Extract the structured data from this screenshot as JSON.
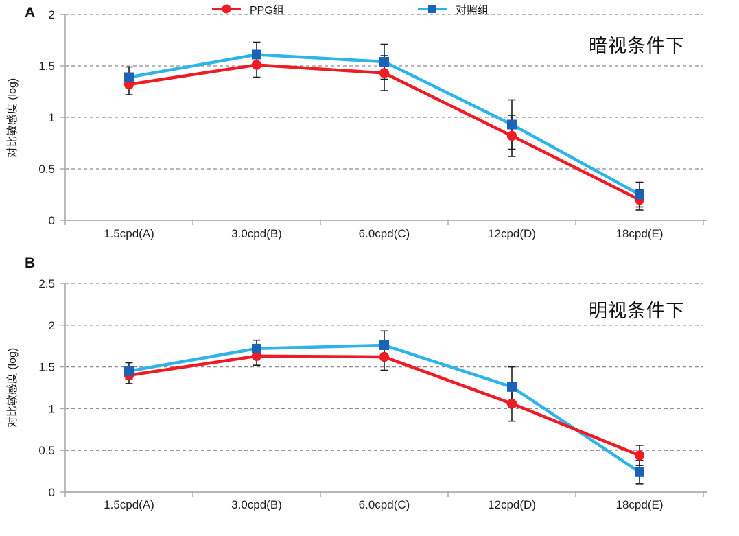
{
  "chart_data": {
    "type": "line",
    "figure_kind": "two-panel line chart with error bars",
    "panels": [
      {
        "panel_label": "A",
        "title": "暗视条件下",
        "ylabel": "对比敏感度 (log)",
        "ylim": [
          0,
          2
        ],
        "yticks": [
          0,
          0.5,
          1,
          1.5,
          2
        ],
        "grid": "dashed horizontal",
        "categories": [
          "1.5cpd(A)",
          "3.0cpd(B)",
          "6.0cpd(C)",
          "12cpd(D)",
          "18cpd(E)"
        ],
        "series": [
          {
            "name": "PPG组",
            "marker": "circle",
            "line_color": "#EE1C25",
            "marker_color": "#EE1C25",
            "values": [
              1.32,
              1.51,
              1.43,
              0.82,
              0.2
            ],
            "errors": [
              0.1,
              0.12,
              0.17,
              0.2,
              0.1
            ]
          },
          {
            "name": "对照组",
            "marker": "square",
            "line_color": "#2FB4E8",
            "marker_color": "#1B63B8",
            "values": [
              1.39,
              1.61,
              1.54,
              0.93,
              0.25
            ],
            "errors": [
              0.1,
              0.12,
              0.17,
              0.24,
              0.12
            ]
          }
        ]
      },
      {
        "panel_label": "B",
        "title": "明视条件下",
        "ylabel": "对比敏感度 (log)",
        "ylim": [
          0,
          2.5
        ],
        "yticks": [
          0,
          0.5,
          1,
          1.5,
          2,
          2.5
        ],
        "grid": "dashed horizontal",
        "categories": [
          "1.5cpd(A)",
          "3.0cpd(B)",
          "6.0cpd(C)",
          "12cpd(D)",
          "18cpd(E)"
        ],
        "series": [
          {
            "name": "PPG组",
            "marker": "circle",
            "line_color": "#EE1C25",
            "marker_color": "#EE1C25",
            "values": [
              1.4,
              1.63,
              1.62,
              1.06,
              0.44
            ],
            "errors": [
              0.1,
              0.11,
              0.16,
              0.21,
              0.12
            ]
          },
          {
            "name": "对照组",
            "marker": "square",
            "line_color": "#2FB4E8",
            "marker_color": "#1B63B8",
            "values": [
              1.45,
              1.72,
              1.76,
              1.26,
              0.24
            ],
            "errors": [
              0.1,
              0.1,
              0.17,
              0.24,
              0.14
            ]
          }
        ]
      }
    ],
    "legend": [
      {
        "label": "PPG组",
        "marker": "circle",
        "line_color": "#EE1C25",
        "marker_color": "#EE1C25"
      },
      {
        "label": "对照组",
        "marker": "square",
        "line_color": "#2FB4E8",
        "marker_color": "#1B63B8"
      }
    ],
    "legend_position": "bottom",
    "style": {
      "axis_color": "#ABABAB",
      "gridline_color": "#8C8C8C",
      "errorbar_color": "#1F1F1F",
      "text_color": "#1F1F1F",
      "background": "#FFFFFF"
    }
  }
}
